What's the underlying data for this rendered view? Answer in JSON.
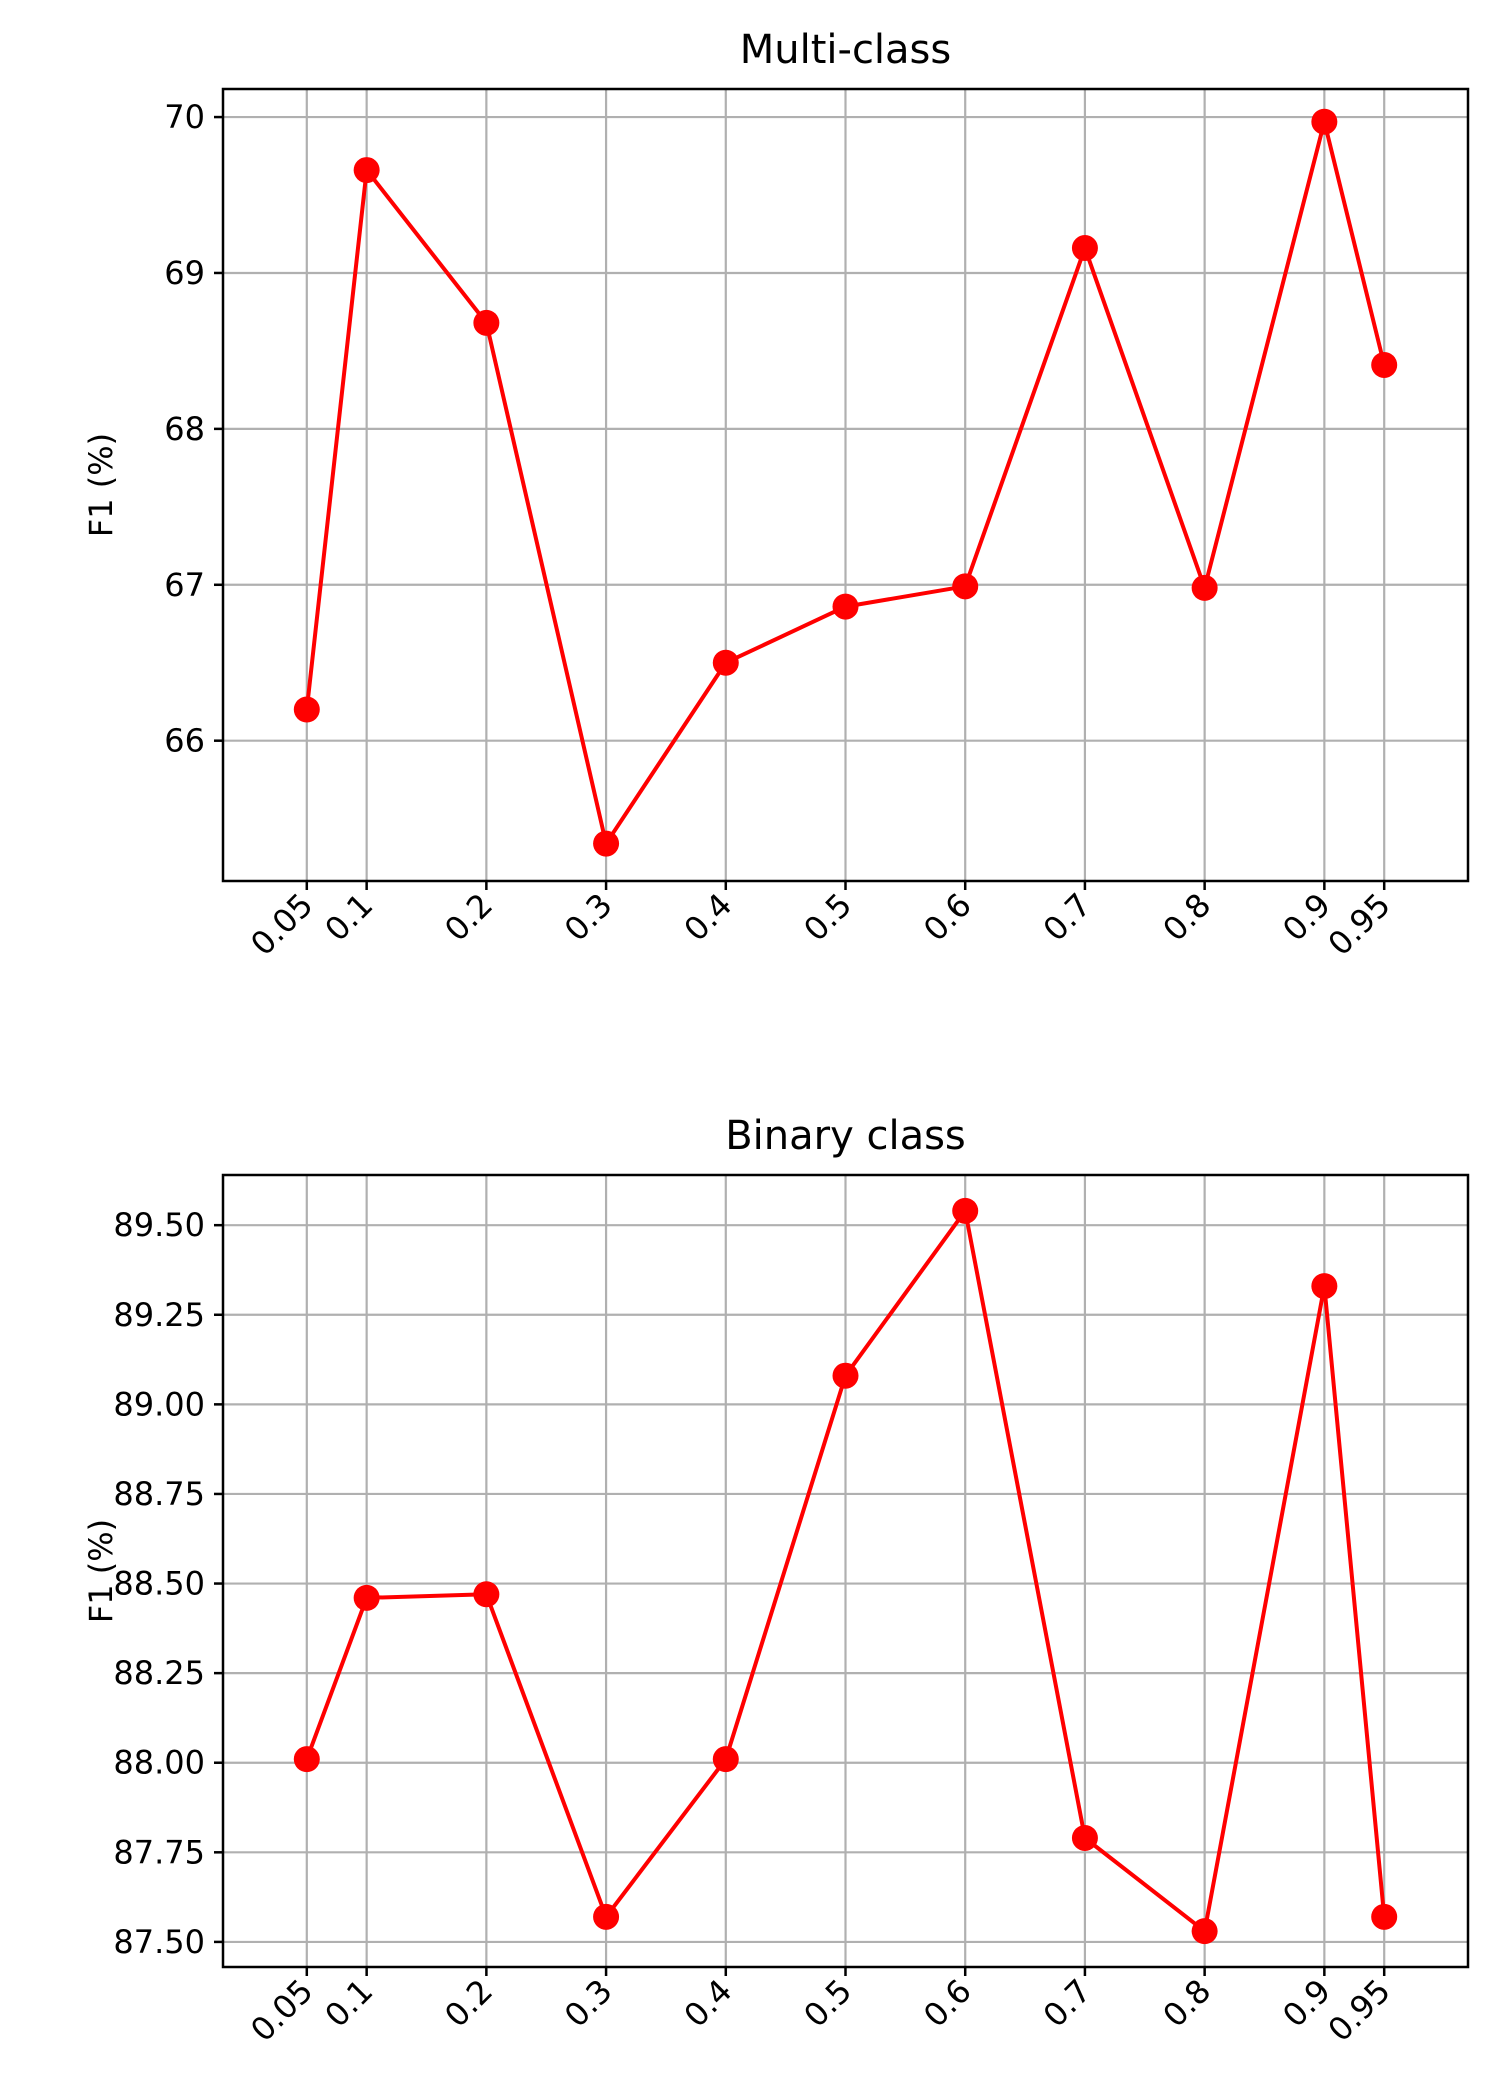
{
  "chart_data": [
    {
      "type": "line",
      "title": "Multi-class",
      "xlabel": "",
      "ylabel": "F1 (%)",
      "x": [
        0.05,
        0.1,
        0.2,
        0.3,
        0.4,
        0.5,
        0.6,
        0.7,
        0.8,
        0.9,
        0.95
      ],
      "x_tick_labels": [
        "0.05",
        "0.1",
        "0.2",
        "0.3",
        "0.4",
        "0.5",
        "0.6",
        "0.7",
        "0.8",
        "0.9",
        "0.95"
      ],
      "y_ticks": [
        66,
        67,
        68,
        69,
        70
      ],
      "y_tick_labels": [
        "66",
        "67",
        "68",
        "69",
        "70"
      ],
      "ylim": [
        65.1,
        70.18
      ],
      "xlim": [
        -0.02,
        1.02
      ],
      "grid": true,
      "series": [
        {
          "color": "#ff0000",
          "values": [
            66.2,
            69.66,
            68.68,
            65.34,
            66.5,
            66.86,
            66.99,
            69.16,
            66.98,
            69.97,
            68.41
          ]
        }
      ]
    },
    {
      "type": "line",
      "title": "Binary class",
      "xlabel": "",
      "ylabel": "F1 (%)",
      "x": [
        0.05,
        0.1,
        0.2,
        0.3,
        0.4,
        0.5,
        0.6,
        0.7,
        0.8,
        0.9,
        0.95
      ],
      "x_tick_labels": [
        "0.05",
        "0.1",
        "0.2",
        "0.3",
        "0.4",
        "0.5",
        "0.6",
        "0.7",
        "0.8",
        "0.9",
        "0.95"
      ],
      "y_ticks": [
        87.5,
        87.75,
        88.0,
        88.25,
        88.5,
        88.75,
        89.0,
        89.25,
        89.5
      ],
      "y_tick_labels": [
        "87.50",
        "87.75",
        "88.00",
        "88.25",
        "88.50",
        "88.75",
        "89.00",
        "89.25",
        "89.50"
      ],
      "ylim": [
        87.43,
        89.64
      ],
      "xlim": [
        -0.02,
        1.02
      ],
      "grid": true,
      "series": [
        {
          "color": "#ff0000",
          "values": [
            88.01,
            88.46,
            88.47,
            87.57,
            88.01,
            89.08,
            89.54,
            87.79,
            87.53,
            89.33,
            87.57
          ]
        }
      ]
    }
  ]
}
